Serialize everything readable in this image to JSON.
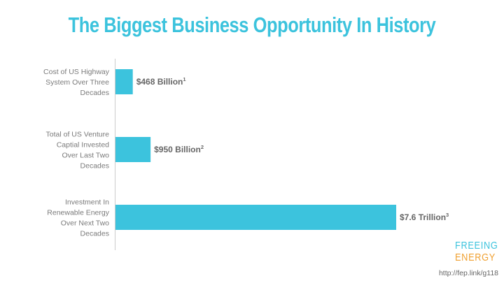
{
  "title": "The Biggest Business Opportunity In History",
  "colors": {
    "title": "#3cc3dd",
    "bar": "#3cc3dd",
    "axis": "#cccccc",
    "logo_top": "#3cc3dd",
    "logo_bottom": "#f0a030"
  },
  "chart_data": {
    "type": "bar",
    "orientation": "horizontal",
    "categories": [
      [
        "Cost of US Highway",
        "System Over Three",
        "Decades"
      ],
      [
        "Total of US Venture",
        "Captial Invested",
        "Over Last Two",
        "Decades"
      ],
      [
        "Investment In",
        "Renewable Energy",
        "Over Next Two",
        "Decades"
      ]
    ],
    "values": [
      468,
      950,
      7600
    ],
    "unit": "Billion USD",
    "value_labels": [
      "$468 Billion",
      "$950 Billion",
      "$7.6 Trillion"
    ],
    "footnotes": [
      "1",
      "2",
      "3"
    ],
    "xlim": [
      0,
      7600
    ],
    "grid": false
  },
  "logo": {
    "line1": "FREEING",
    "line2": "ENERGY"
  },
  "source_url": "http://fep.link/g118"
}
